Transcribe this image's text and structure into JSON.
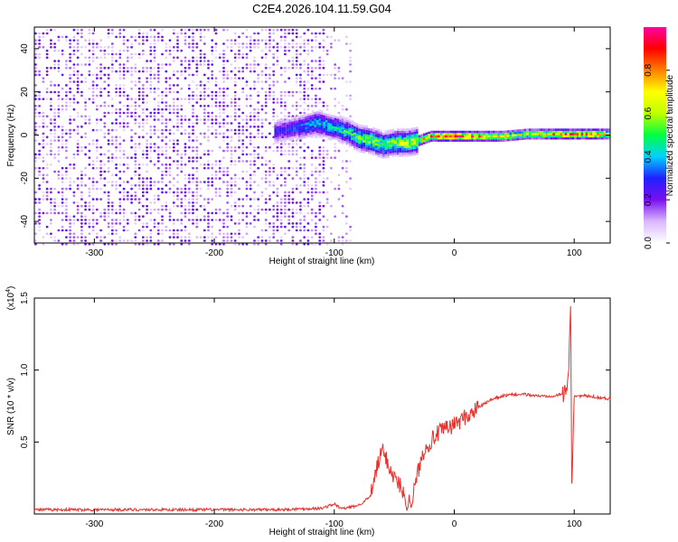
{
  "chart_data": [
    {
      "type": "heatmap",
      "title": "C2E4.2026.104.11.59.G04",
      "xlabel": "Height of straight line (km)",
      "ylabel": "Frequency (Hz)",
      "xlim": [
        -350,
        130
      ],
      "ylim": [
        -50,
        50
      ],
      "xticks": [
        -300,
        -200,
        -100,
        0,
        100
      ],
      "yticks": [
        -40,
        -20,
        0,
        20,
        40
      ],
      "colorbar": {
        "label": "Normalized spectral amplitude",
        "range": [
          0,
          1
        ],
        "ticks": [
          0.0,
          0.2,
          0.4,
          0.6,
          0.8
        ],
        "tick_labels": [
          "0.0",
          "0.2",
          "0.4",
          "0.6",
          "0.8"
        ],
        "colors": [
          "#ffffff",
          "#d9b8ff",
          "#7a10f0",
          "#2020ff",
          "#00d0ff",
          "#00ff40",
          "#c0ff00",
          "#ffff00",
          "#ff8000",
          "#ff0000",
          "#ff00a0"
        ]
      },
      "noise_region_x": [
        -350,
        -85
      ],
      "signal_track": [
        {
          "x": -150,
          "y": 2,
          "amp": 0.25
        },
        {
          "x": -130,
          "y": 4,
          "amp": 0.3
        },
        {
          "x": -115,
          "y": 6,
          "amp": 0.4
        },
        {
          "x": -100,
          "y": 4,
          "amp": 0.4
        },
        {
          "x": -90,
          "y": 2,
          "amp": 0.45
        },
        {
          "x": -80,
          "y": -1,
          "amp": 0.5
        },
        {
          "x": -70,
          "y": -2,
          "amp": 0.55
        },
        {
          "x": -60,
          "y": -4,
          "amp": 0.5
        },
        {
          "x": -50,
          "y": -3,
          "amp": 0.55
        },
        {
          "x": -40,
          "y": -3,
          "amp": 0.6
        },
        {
          "x": -30,
          "y": -2,
          "amp": 0.65
        },
        {
          "x": -20,
          "y": 0,
          "amp": 0.75
        },
        {
          "x": 0,
          "y": 0,
          "amp": 0.9
        },
        {
          "x": 20,
          "y": 0,
          "amp": 0.75
        },
        {
          "x": 40,
          "y": 0,
          "amp": 0.65
        },
        {
          "x": 60,
          "y": 1,
          "amp": 0.6
        },
        {
          "x": 80,
          "y": 1,
          "amp": 0.7
        },
        {
          "x": 90,
          "y": 1,
          "amp": 0.85
        },
        {
          "x": 100,
          "y": 1,
          "amp": 0.7
        },
        {
          "x": 115,
          "y": 1,
          "amp": 0.8
        },
        {
          "x": 130,
          "y": 1,
          "amp": 0.6
        }
      ]
    },
    {
      "type": "line",
      "xlabel": "Height of straight line (km)",
      "ylabel": "SNR (10 * v/v)",
      "yscale_label": "(x10",
      "yscale_exponent": "4",
      "xlim": [
        -350,
        130
      ],
      "ylim": [
        0,
        1.5
      ],
      "xticks": [
        -300,
        -200,
        -100,
        0,
        100
      ],
      "yticks": [
        0.5,
        1.0,
        1.5
      ],
      "ytick_labels": [
        "0.5",
        "1.0",
        "1.5"
      ],
      "series": [
        {
          "color": "#e8302c",
          "x": [
            -350,
            -300,
            -200,
            -150,
            -110,
            -100,
            -95,
            -90,
            -80,
            -70,
            -65,
            -60,
            -55,
            -50,
            -45,
            -40,
            -35,
            -30,
            -25,
            -20,
            -15,
            -10,
            -5,
            0,
            5,
            10,
            15,
            20,
            30,
            40,
            50,
            60,
            70,
            80,
            90,
            95,
            97,
            98,
            100,
            110,
            120,
            130
          ],
          "y": [
            0.03,
            0.03,
            0.03,
            0.03,
            0.04,
            0.07,
            0.04,
            0.04,
            0.06,
            0.12,
            0.3,
            0.45,
            0.35,
            0.25,
            0.2,
            0.08,
            0.1,
            0.3,
            0.45,
            0.5,
            0.55,
            0.58,
            0.6,
            0.62,
            0.65,
            0.68,
            0.7,
            0.74,
            0.79,
            0.82,
            0.83,
            0.83,
            0.82,
            0.82,
            0.83,
            0.9,
            1.5,
            0.2,
            0.82,
            0.82,
            0.81,
            0.8
          ]
        }
      ]
    }
  ]
}
